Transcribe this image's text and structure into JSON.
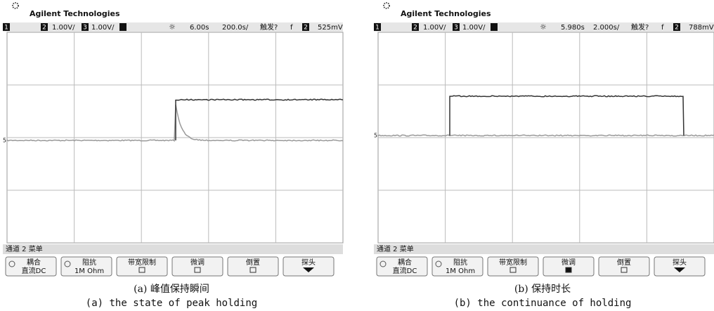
{
  "panels": [
    {
      "brand": "Agilent Technologies",
      "status": [
        "1",
        "2",
        "1.00V/",
        "3",
        "1.00V/",
        "6.00s",
        "200.0s/",
        "触发?",
        "f",
        "2",
        "525mV"
      ],
      "menu_title": "通道 2 菜单",
      "buttons": [
        {
          "label": "耦合",
          "value": "直流DC"
        },
        {
          "label": "阻抗",
          "value": "1M Ohm"
        },
        {
          "label": "带宽限制"
        },
        {
          "label": "微调"
        },
        {
          "label": "倒置"
        },
        {
          "label": "探头"
        }
      ],
      "caption_cn": "(a) 峰值保持瞬间",
      "caption_en": "(a) the state of peak holding"
    },
    {
      "brand": "Agilent Technologies",
      "status": [
        "1",
        "2",
        "1.00V/",
        "3",
        "1.00V/",
        "5.980s",
        "2.000s/",
        "触发?",
        "f",
        "2",
        "788mV"
      ],
      "menu_title": "通道 2 菜单",
      "buttons": [
        {
          "label": "耦合",
          "value": "直流DC"
        },
        {
          "label": "阻抗",
          "value": "1M Ohm"
        },
        {
          "label": "带宽限制"
        },
        {
          "label": "微调"
        },
        {
          "label": "倒置"
        },
        {
          "label": "探头"
        }
      ],
      "caption_cn": "(b) 保持时长",
      "caption_en": "(b) the continuance of holding"
    }
  ]
}
